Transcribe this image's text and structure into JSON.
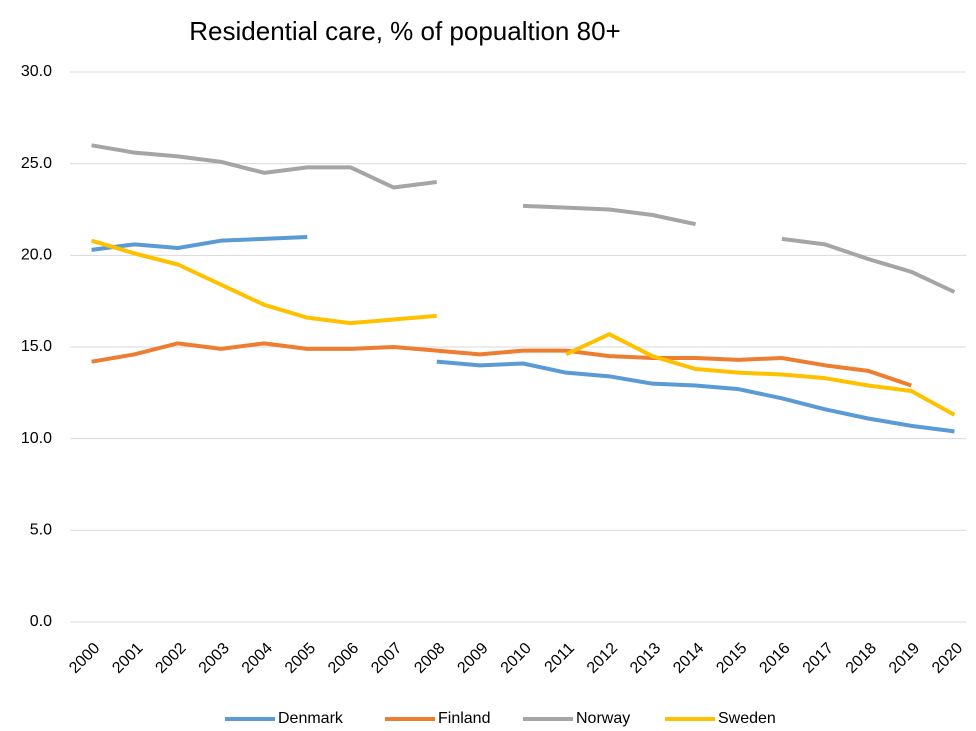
{
  "chart_data": {
    "type": "line",
    "title": "Residential care, % of popualtion 80+",
    "categories": [
      "2000",
      "2001",
      "2002",
      "2003",
      "2004",
      "2005",
      "2006",
      "2007",
      "2008",
      "2009",
      "2010",
      "2011",
      "2012",
      "2013",
      "2014",
      "2015",
      "2016",
      "2017",
      "2018",
      "2019",
      "2020"
    ],
    "series": [
      {
        "name": "Denmark",
        "color": "#5b9bd5",
        "values": [
          20.3,
          20.6,
          20.4,
          20.8,
          20.9,
          21.0,
          null,
          null,
          14.2,
          14.0,
          14.1,
          13.6,
          13.4,
          13.0,
          12.9,
          12.7,
          12.2,
          11.6,
          11.1,
          10.7,
          10.4
        ]
      },
      {
        "name": "Finland",
        "color": "#ed7d31",
        "values": [
          14.2,
          14.6,
          15.2,
          14.9,
          15.2,
          14.9,
          14.9,
          15.0,
          14.8,
          14.6,
          14.8,
          14.8,
          14.5,
          14.4,
          14.4,
          14.3,
          14.4,
          14.0,
          13.7,
          12.9,
          null
        ]
      },
      {
        "name": "Norway",
        "color": "#a5a5a5",
        "values": [
          26.0,
          25.6,
          25.4,
          25.1,
          24.5,
          24.8,
          24.8,
          23.7,
          24.0,
          null,
          22.7,
          22.6,
          22.5,
          22.2,
          21.7,
          null,
          20.9,
          20.6,
          19.8,
          19.1,
          18.0
        ]
      },
      {
        "name": "Sweden",
        "color": "#ffc000",
        "values": [
          20.8,
          20.1,
          19.5,
          18.4,
          17.3,
          16.6,
          16.3,
          16.5,
          16.7,
          null,
          null,
          14.6,
          15.7,
          14.5,
          13.8,
          13.6,
          13.5,
          13.3,
          12.9,
          12.6,
          11.3
        ]
      }
    ],
    "ylim": [
      0,
      30
    ],
    "yticks": [
      {
        "value": 0,
        "label": "0.0"
      },
      {
        "value": 5,
        "label": "5.0"
      },
      {
        "value": 10,
        "label": "10.0"
      },
      {
        "value": 15,
        "label": "15.0"
      },
      {
        "value": 20,
        "label": "20.0"
      },
      {
        "value": 25,
        "label": "25.0"
      },
      {
        "value": 30,
        "label": "30.0"
      }
    ],
    "grid": true,
    "legend": "bottom"
  }
}
